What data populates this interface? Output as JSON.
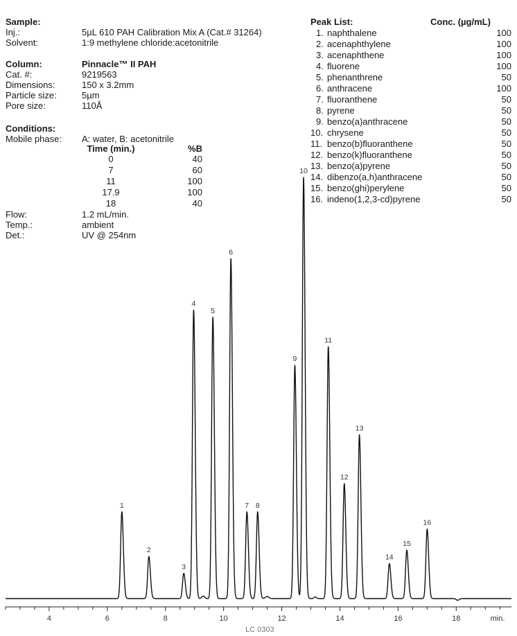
{
  "sample": {
    "heading": "Sample:",
    "rows": [
      {
        "label": "Inj.:",
        "value": "5µL 610 PAH Calibration Mix A (Cat.# 31264)"
      },
      {
        "label": "Solvent:",
        "value": "1:9 methylene chloride:acetonitrile"
      }
    ]
  },
  "column": {
    "heading": "Column:",
    "name": "Pinnacle™ II PAH",
    "rows": [
      {
        "label": "Cat. #:",
        "value": "9219563"
      },
      {
        "label": "Dimensions:",
        "value": "150 x 3.2mm"
      },
      {
        "label": "Particle size:",
        "value": "5µm"
      },
      {
        "label": "Pore size:",
        "value": "110Å"
      }
    ]
  },
  "conditions": {
    "heading": "Conditions:",
    "mobile_label": "Mobile phase:",
    "mobile_value": "A: water, B: acetonitrile",
    "gradient_headers": {
      "time": "Time (min.)",
      "b": "%B"
    },
    "gradient": [
      {
        "time": "0",
        "b": "40"
      },
      {
        "time": "7",
        "b": "60"
      },
      {
        "time": "11",
        "b": "100"
      },
      {
        "time": "17.9",
        "b": "100"
      },
      {
        "time": "18",
        "b": "40"
      }
    ],
    "rows": [
      {
        "label": "Flow:",
        "value": "1.2 mL/min."
      },
      {
        "label": "Temp.:",
        "value": "ambient"
      },
      {
        "label": "Det.:",
        "value": "UV @  254nm"
      }
    ]
  },
  "peak_list": {
    "heading": "Peak List:",
    "conc_heading": "Conc. (µg/mL)",
    "peaks": [
      {
        "num": "1.",
        "name": "naphthalene",
        "conc": "100"
      },
      {
        "num": "2.",
        "name": "acenaphthylene",
        "conc": "100"
      },
      {
        "num": "3.",
        "name": "acenaphthene",
        "conc": "100"
      },
      {
        "num": "4.",
        "name": "fluorene",
        "conc": "100"
      },
      {
        "num": "5.",
        "name": "phenanthrene",
        "conc": "50"
      },
      {
        "num": "6.",
        "name": "anthracene",
        "conc": "100"
      },
      {
        "num": "7.",
        "name": "fluoranthene",
        "conc": "50"
      },
      {
        "num": "8.",
        "name": "pyrene",
        "conc": "50"
      },
      {
        "num": "9.",
        "name": "benzo(a)anthracene",
        "conc": "50"
      },
      {
        "num": "10.",
        "name": "chrysene",
        "conc": "50"
      },
      {
        "num": "11.",
        "name": "benzo(b)fluoranthene",
        "conc": "50"
      },
      {
        "num": "12.",
        "name": "benzo(k)fluoranthene",
        "conc": "50"
      },
      {
        "num": "13.",
        "name": "benzo(a)pyrene",
        "conc": "50"
      },
      {
        "num": "14.",
        "name": "dibenzo(a,h)anthracene",
        "conc": "50"
      },
      {
        "num": "15.",
        "name": "benzo(ghi)perylene",
        "conc": "50"
      },
      {
        "num": "16.",
        "name": "indeno(1,2,3-cd)pyrene",
        "conc": "50"
      }
    ]
  },
  "chart_data": {
    "type": "line",
    "title": "",
    "xlabel": "min.",
    "ylabel": "",
    "xlim": [
      2.5,
      19.9
    ],
    "ylim": [
      0,
      100
    ],
    "xticks": [
      4,
      6,
      8,
      10,
      12,
      14,
      16,
      18
    ],
    "grid": false,
    "baseline": 0,
    "peaks": [
      {
        "label": "1",
        "x": 6.5,
        "y": 20.6
      },
      {
        "label": "2",
        "x": 7.43,
        "y": 10.0
      },
      {
        "label": "3",
        "x": 8.63,
        "y": 6.0
      },
      {
        "label": "4",
        "x": 8.97,
        "y": 68.5
      },
      {
        "label": "5",
        "x": 9.63,
        "y": 66.8
      },
      {
        "label": "6",
        "x": 10.25,
        "y": 80.7
      },
      {
        "label": "7",
        "x": 10.8,
        "y": 20.6
      },
      {
        "label": "8",
        "x": 11.17,
        "y": 20.6
      },
      {
        "label": "9",
        "x": 12.45,
        "y": 55.4
      },
      {
        "label": "10",
        "x": 12.75,
        "y": 100.0
      },
      {
        "label": "11",
        "x": 13.6,
        "y": 59.8
      },
      {
        "label": "12",
        "x": 14.15,
        "y": 27.3
      },
      {
        "label": "13",
        "x": 14.67,
        "y": 38.9
      },
      {
        "label": "14",
        "x": 15.7,
        "y": 8.3
      },
      {
        "label": "15",
        "x": 16.3,
        "y": 11.5
      },
      {
        "label": "16",
        "x": 17.0,
        "y": 16.5
      }
    ],
    "colors": {
      "trace": "#111111",
      "axis": "#222222",
      "labels": "#333333"
    }
  },
  "footer": "LC  0303"
}
